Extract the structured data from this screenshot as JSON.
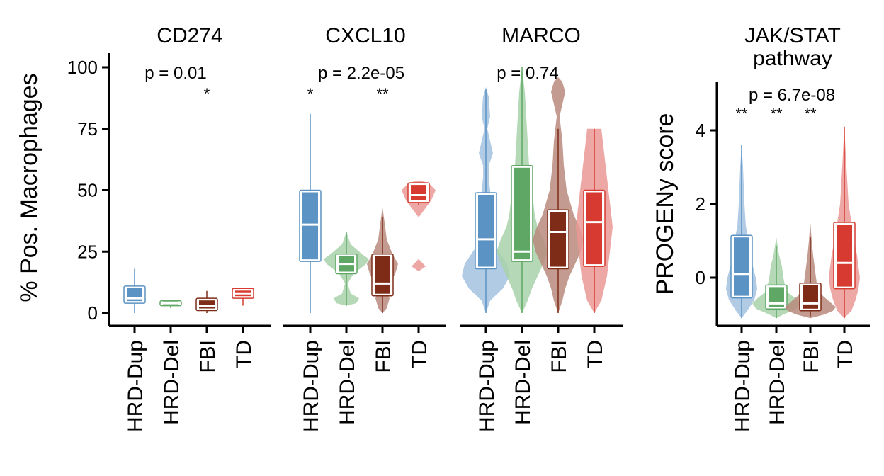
{
  "colors": {
    "HRD-Dup": "#5a93c4",
    "HRD-Del": "#5ea764",
    "FBI": "#7e2c17",
    "TD": "#d63a30"
  },
  "left_axis": {
    "ylabel": "% Pos. Macrophages",
    "ylim": [
      0,
      100
    ],
    "ticks": [
      0,
      25,
      50,
      75,
      100
    ]
  },
  "right_axis": {
    "ylabel": "PROGENy score",
    "ylim": [
      -1.2,
      5.2
    ],
    "ticks": [
      0,
      2,
      4
    ]
  },
  "chart_data": [
    {
      "type": "violin-box",
      "title": "CD274",
      "axis": "left",
      "pvalue": "p = 0.01",
      "categories": [
        "HRD-Dup",
        "HRD-Del",
        "FBI",
        "TD"
      ],
      "stars": [
        "",
        "",
        "*",
        ""
      ],
      "violin": [
        false,
        false,
        false,
        false
      ],
      "box": [
        {
          "min": 0,
          "q1": 4,
          "median": 6,
          "q3": 11,
          "max": 18
        },
        {
          "min": 2,
          "q1": 3,
          "median": 4,
          "q3": 5,
          "max": 5
        },
        {
          "min": 0,
          "q1": 1,
          "median": 3,
          "q3": 6,
          "max": 9
        },
        {
          "min": 3,
          "q1": 6,
          "median": 8,
          "q3": 10,
          "max": 10
        }
      ]
    },
    {
      "type": "violin-box",
      "title": "CXCL10",
      "axis": "left",
      "pvalue": "p = 2.2e-05",
      "categories": [
        "HRD-Dup",
        "HRD-Del",
        "FBI",
        "TD"
      ],
      "stars": [
        "*",
        "",
        "**",
        ""
      ],
      "violin": [
        false,
        true,
        true,
        true
      ],
      "box": [
        {
          "min": 0,
          "q1": 21,
          "median": 36,
          "q3": 50,
          "max": 81
        },
        {
          "min": 3,
          "q1": 16,
          "median": 20,
          "q3": 24,
          "max": 33
        },
        {
          "min": 0,
          "q1": 7,
          "median": 12,
          "q3": 24,
          "max": 39
        },
        {
          "min": 44,
          "q1": 45,
          "median": 48,
          "q3": 53,
          "max": 53
        }
      ]
    },
    {
      "type": "violin-box",
      "title": "MARCO",
      "axis": "left",
      "pvalue": "p = 0.74",
      "categories": [
        "HRD-Dup",
        "HRD-Del",
        "FBI",
        "TD"
      ],
      "stars": [
        "",
        "",
        "",
        ""
      ],
      "violin": [
        true,
        true,
        true,
        true
      ],
      "box": [
        {
          "min": 0,
          "q1": 18,
          "median": 30,
          "q3": 49,
          "max": 91
        },
        {
          "min": 0,
          "q1": 21,
          "median": 25,
          "q3": 60,
          "max": 100
        },
        {
          "min": 0,
          "q1": 18,
          "median": 33,
          "q3": 42,
          "max": 75
        },
        {
          "min": 0,
          "q1": 19,
          "median": 37,
          "q3": 50,
          "max": 75
        }
      ]
    },
    {
      "type": "violin-box",
      "title": "JAK/STAT\npathway",
      "axis": "right",
      "pvalue": "p = 6.7e-08",
      "categories": [
        "HRD-Dup",
        "HRD-Del",
        "FBI",
        "TD"
      ],
      "stars": [
        "**",
        "**",
        "**",
        ""
      ],
      "violin": [
        true,
        true,
        true,
        true
      ],
      "box": [
        {
          "min": -1.1,
          "q1": -0.55,
          "median": 0.1,
          "q3": 1.15,
          "max": 3.6
        },
        {
          "min": -1.1,
          "q1": -0.85,
          "median": -0.7,
          "q3": -0.2,
          "max": 0.85
        },
        {
          "min": -1.05,
          "q1": -0.9,
          "median": -0.7,
          "q3": -0.15,
          "max": 1.1
        },
        {
          "min": -1.1,
          "q1": -0.3,
          "median": 0.4,
          "q3": 1.5,
          "max": 4.1
        }
      ]
    }
  ]
}
